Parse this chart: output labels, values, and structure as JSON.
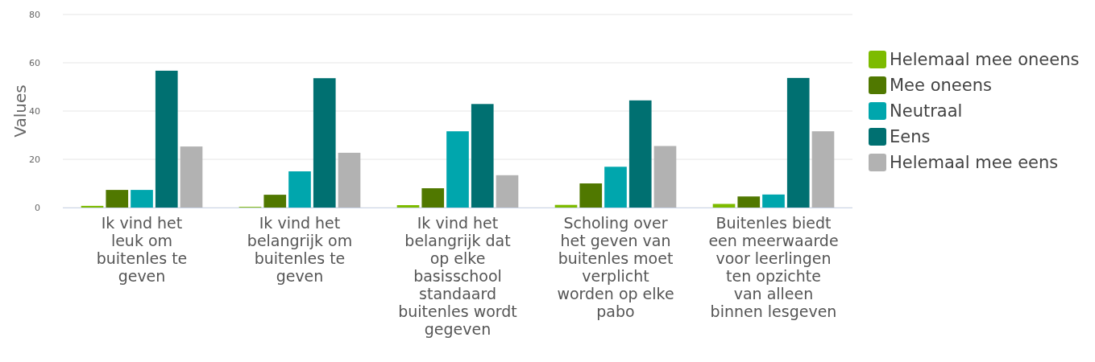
{
  "chart_data": {
    "type": "bar",
    "ylabel": "Values",
    "categories": [
      "Ik vind het leuk om buitenles te geven",
      "Ik vind het belangrijk om buitenles te geven",
      "Ik vind het belangrijk dat op elke basisschool standaard buitenles wordt gegeven",
      "Scholing over het geven van buitenles moet verplicht worden op elke pabo",
      "Buitenles biedt een meerwaarde voor leerlingen ten opzichte van alleen binnen lesgeven"
    ],
    "series": [
      {
        "name": "Helemaal mee oneens",
        "color": "#7dbb00",
        "values": [
          0.7,
          0.3,
          1,
          1.1,
          1.5
        ]
      },
      {
        "name": "Mee oneens",
        "color": "#507800",
        "values": [
          7.3,
          5.3,
          8,
          10,
          4.6
        ]
      },
      {
        "name": "Neutraal",
        "color": "#00a6ad",
        "values": [
          7.3,
          15,
          31.6,
          16.9,
          5.4
        ]
      },
      {
        "name": "Eens",
        "color": "#007071",
        "values": [
          56.7,
          53.6,
          42.9,
          44.4,
          53.7
        ]
      },
      {
        "name": "Helemaal mee eens",
        "color": "#b2b2b2",
        "values": [
          25.3,
          22.7,
          13.4,
          25.5,
          31.6
        ]
      }
    ],
    "ylim": [
      0,
      80
    ],
    "yticks": [
      0,
      20,
      40,
      60,
      80
    ],
    "grid": "y",
    "legend": "right"
  }
}
